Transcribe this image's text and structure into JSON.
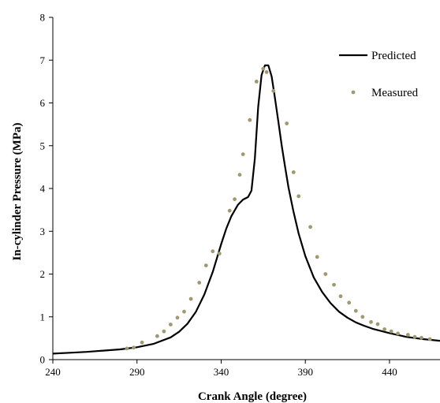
{
  "chart_data": {
    "type": "line",
    "title": "",
    "xlabel": "Crank Angle (degree)",
    "ylabel": "In-cylinder Pressure (MPa)",
    "xlim": [
      240,
      470
    ],
    "ylim": [
      0,
      8
    ],
    "x_ticks": [
      240,
      290,
      340,
      390,
      440
    ],
    "y_ticks": [
      0,
      1,
      2,
      3,
      4,
      5,
      6,
      7,
      8
    ],
    "grid": false,
    "legend_position": "top-right",
    "series": [
      {
        "name": "Predicted",
        "style": "line",
        "color": "#000000",
        "x": [
          240,
          250,
          260,
          270,
          280,
          290,
          300,
          310,
          315,
          320,
          325,
          330,
          335,
          340,
          343,
          346,
          350,
          353,
          356,
          358,
          360,
          362,
          364,
          366,
          368,
          370,
          372,
          374,
          376,
          378,
          380,
          383,
          386,
          390,
          395,
          400,
          405,
          410,
          415,
          420,
          425,
          430,
          440,
          450,
          460,
          470
        ],
        "y": [
          0.14,
          0.16,
          0.18,
          0.21,
          0.24,
          0.29,
          0.37,
          0.52,
          0.65,
          0.84,
          1.12,
          1.52,
          2.05,
          2.7,
          3.06,
          3.35,
          3.62,
          3.74,
          3.8,
          3.95,
          4.7,
          5.9,
          6.65,
          6.88,
          6.88,
          6.62,
          6.1,
          5.55,
          5.0,
          4.5,
          4.02,
          3.45,
          2.95,
          2.42,
          1.92,
          1.58,
          1.32,
          1.12,
          0.98,
          0.87,
          0.79,
          0.72,
          0.62,
          0.53,
          0.48,
          0.44
        ]
      },
      {
        "name": "Measured",
        "style": "points",
        "color": "#a09870",
        "x": [
          284,
          288,
          293,
          302,
          306,
          310,
          314,
          318,
          322,
          327,
          331,
          335,
          339,
          345,
          348,
          351,
          353,
          357,
          361,
          365,
          367,
          371,
          379,
          383,
          386,
          393,
          397,
          402,
          407,
          411,
          416,
          420,
          424,
          429,
          433,
          437,
          441,
          445,
          451,
          455,
          459,
          464
        ],
        "y": [
          0.26,
          0.28,
          0.4,
          0.55,
          0.66,
          0.82,
          0.98,
          1.12,
          1.42,
          1.8,
          2.2,
          2.53,
          2.48,
          3.48,
          3.75,
          4.32,
          4.8,
          5.6,
          6.5,
          6.8,
          6.72,
          6.28,
          5.52,
          4.38,
          3.82,
          3.1,
          2.4,
          2.0,
          1.75,
          1.48,
          1.33,
          1.14,
          1.0,
          0.88,
          0.83,
          0.71,
          0.66,
          0.61,
          0.58,
          0.53,
          0.51,
          0.48
        ]
      }
    ]
  }
}
